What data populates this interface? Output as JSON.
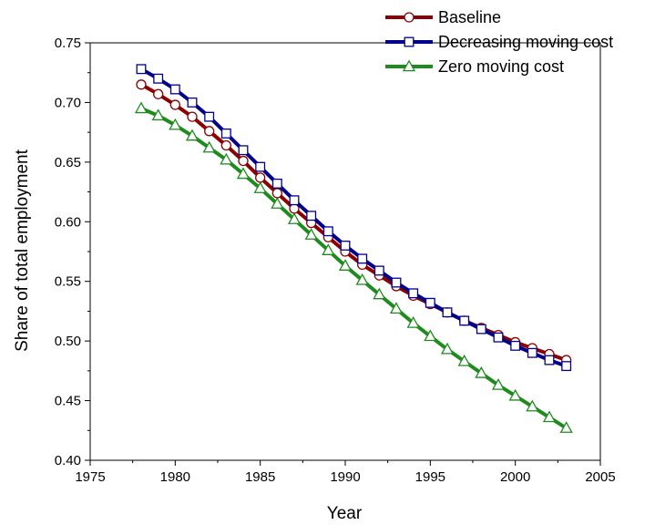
{
  "chart_data": {
    "type": "line",
    "title": "",
    "xlabel": "Year",
    "ylabel": "Share of total employment",
    "xlim": [
      1975,
      2005
    ],
    "ylim": [
      0.4,
      0.75
    ],
    "xticks": [
      1975,
      1980,
      1985,
      1990,
      1995,
      2000,
      2005
    ],
    "yticks": [
      0.4,
      0.45,
      0.5,
      0.55,
      0.6,
      0.65,
      0.7,
      0.75
    ],
    "xtick_labels": [
      "1975",
      "1980",
      "1985",
      "1990",
      "1995",
      "2000",
      "2005"
    ],
    "ytick_labels": [
      "0.40",
      "0.45",
      "0.50",
      "0.55",
      "0.60",
      "0.65",
      "0.70",
      "0.75"
    ],
    "grid": false,
    "legend_position": "top-right",
    "x": [
      1978,
      1979,
      1980,
      1981,
      1982,
      1983,
      1984,
      1985,
      1986,
      1987,
      1988,
      1989,
      1990,
      1991,
      1992,
      1993,
      1994,
      1995,
      1996,
      1997,
      1998,
      1999,
      2000,
      2001,
      2002,
      2003
    ],
    "series": [
      {
        "name": "Baseline",
        "color": "#8b0000",
        "marker": "circle",
        "values": [
          0.715,
          0.707,
          0.698,
          0.688,
          0.676,
          0.664,
          0.651,
          0.637,
          0.624,
          0.611,
          0.599,
          0.587,
          0.575,
          0.564,
          0.555,
          0.546,
          0.538,
          0.531,
          0.524,
          0.517,
          0.511,
          0.505,
          0.499,
          0.494,
          0.489,
          0.484
        ]
      },
      {
        "name": "Decreasing moving cost",
        "color": "#00008b",
        "marker": "square",
        "values": [
          0.728,
          0.72,
          0.711,
          0.7,
          0.688,
          0.674,
          0.66,
          0.646,
          0.632,
          0.618,
          0.605,
          0.592,
          0.58,
          0.569,
          0.559,
          0.549,
          0.54,
          0.532,
          0.524,
          0.517,
          0.51,
          0.503,
          0.496,
          0.49,
          0.484,
          0.479
        ]
      },
      {
        "name": "Zero moving cost",
        "color": "#1e8b1e",
        "marker": "triangle",
        "values": [
          0.695,
          0.689,
          0.681,
          0.672,
          0.662,
          0.652,
          0.64,
          0.628,
          0.615,
          0.602,
          0.589,
          0.576,
          0.563,
          0.551,
          0.539,
          0.527,
          0.515,
          0.504,
          0.493,
          0.483,
          0.473,
          0.463,
          0.454,
          0.445,
          0.436,
          0.427
        ]
      }
    ]
  }
}
